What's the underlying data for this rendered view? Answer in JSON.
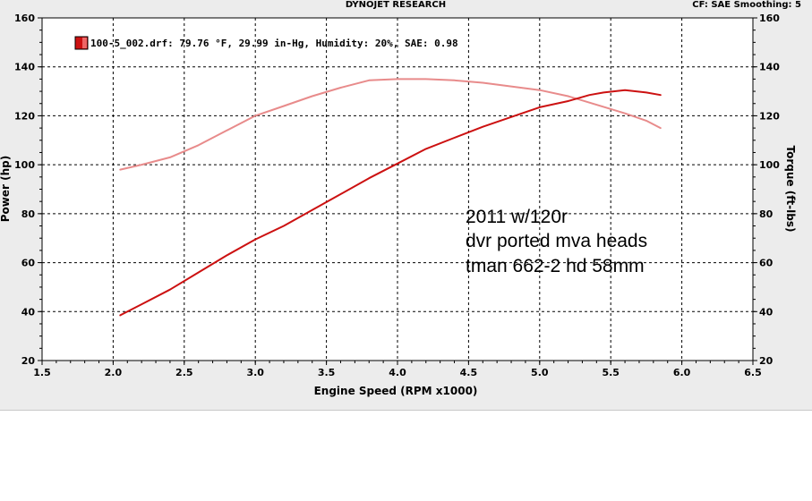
{
  "header": {
    "title": "DYNOJET RESEARCH",
    "right": "CF: SAE  Smoothing: 5"
  },
  "legend": {
    "entry": "100-5_002.drf: 79.76 °F, 29.99 in-Hg, Humidity: 20%, SAE: 0.98"
  },
  "annotation": [
    "2011 w/120r",
    "dvr ported mva heads",
    "tman 662-2  hd 58mm"
  ],
  "colors": {
    "power": "#cc1111",
    "torque": "#e88b8b",
    "grid": "#000000",
    "frame": "#ececec"
  },
  "chart_data": {
    "type": "line",
    "xlabel": "Engine Speed (RPM x1000)",
    "ylabel": "Power (hp)",
    "y2label": "Torque (ft-lbs)",
    "xlim": [
      1.5,
      6.5
    ],
    "ylim": [
      20,
      160
    ],
    "y2lim": [
      20,
      160
    ],
    "x_ticks": [
      "1.5",
      "2.0",
      "2.5",
      "3.0",
      "3.5",
      "4.0",
      "4.5",
      "5.0",
      "5.5",
      "6.0",
      "6.5"
    ],
    "y_ticks": [
      "20",
      "40",
      "60",
      "80",
      "100",
      "120",
      "140",
      "160"
    ],
    "y2_ticks": [
      "20",
      "40",
      "60",
      "80",
      "100",
      "120",
      "140",
      "160"
    ],
    "grid": true,
    "series": [
      {
        "kind": "power",
        "color": "#cc1111",
        "x": [
          2.05,
          2.2,
          2.4,
          2.6,
          2.8,
          3.0,
          3.2,
          3.4,
          3.6,
          3.8,
          4.0,
          4.2,
          4.4,
          4.6,
          4.8,
          5.0,
          5.2,
          5.35,
          5.45,
          5.6,
          5.75,
          5.85
        ],
        "values": [
          38.5,
          43,
          49,
          56,
          63,
          69.5,
          75,
          81.5,
          88,
          94.5,
          100.5,
          106.5,
          111,
          115.5,
          119.5,
          123.5,
          126,
          128.5,
          129.5,
          130.5,
          129.5,
          128.5
        ]
      },
      {
        "kind": "torque",
        "color": "#e88b8b",
        "x": [
          2.05,
          2.2,
          2.4,
          2.6,
          2.8,
          3.0,
          3.2,
          3.4,
          3.6,
          3.8,
          4.0,
          4.2,
          4.4,
          4.6,
          4.8,
          5.0,
          5.2,
          5.4,
          5.6,
          5.75,
          5.85
        ],
        "values": [
          98,
          100,
          103,
          108,
          114,
          120,
          124,
          128,
          131.5,
          134.5,
          135,
          135,
          134.5,
          133.5,
          132,
          130.5,
          128,
          124.5,
          121,
          118,
          115
        ]
      }
    ]
  }
}
